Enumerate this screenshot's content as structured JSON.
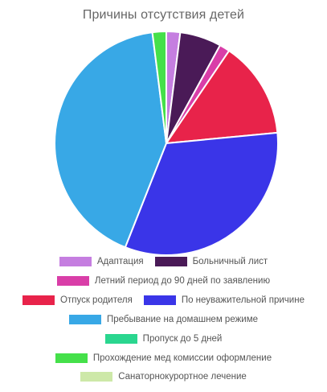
{
  "chart_data": {
    "type": "pie",
    "title": "Причины отсутствия детей",
    "slices": [
      {
        "label": "Адаптация",
        "value": 2,
        "color": "#c57ee0"
      },
      {
        "label": "Больничный лист",
        "value": 6,
        "color": "#4a1a57"
      },
      {
        "label": "Летний период до 90 дней по заявлению",
        "value": 1.5,
        "color": "#d93ea8"
      },
      {
        "label": "Отпуск родителя",
        "value": 14,
        "color": "#e8234a"
      },
      {
        "label": "По неуважительной причине",
        "value": 32.5,
        "color": "#3a35e8"
      },
      {
        "label": "Пребывание на домашнем режиме",
        "value": 42,
        "color": "#38a8e6"
      },
      {
        "label": "Пропуск до 5 дней",
        "value": 0,
        "color": "#2ad68f"
      },
      {
        "label": "Прохождение мед комиссии оформление",
        "value": 2,
        "color": "#45e04a"
      },
      {
        "label": "Санаторнокурортное лечение",
        "value": 0,
        "color": "#cde8a8"
      }
    ],
    "legend_position": "bottom"
  }
}
